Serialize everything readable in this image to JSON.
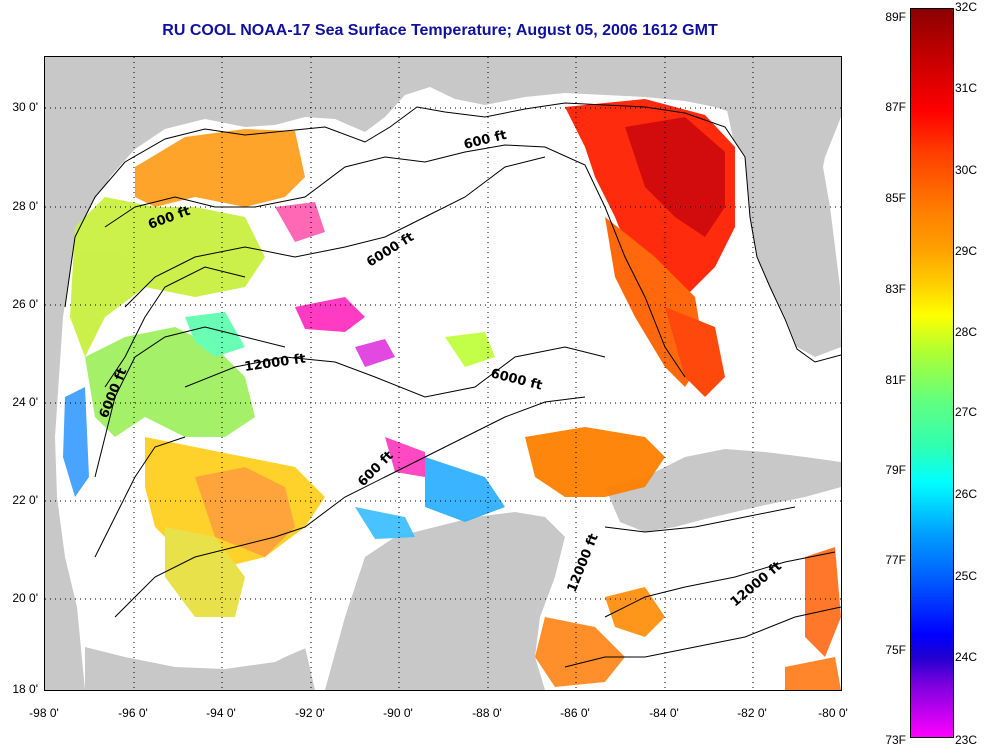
{
  "title": "RU COOL  NOAA-17  Sea Surface Temperature;  August 05, 2006 1612 GMT",
  "y_axis_labels": [
    "30 0'",
    "28 0'",
    "26 0'",
    "24 0'",
    "22 0'",
    "20 0'",
    "18 0'"
  ],
  "x_axis_labels": [
    "-98 0'",
    "-96 0'",
    "-94 0'",
    "-92 0'",
    "-90 0'",
    "-88 0'",
    "-86 0'",
    "-84 0'",
    "-82 0'",
    "-80 0'"
  ],
  "contour_labels": [
    "600 ft",
    "600 ft",
    "6000 ft",
    "12000 ft",
    "6000 ft",
    "6000 ft",
    "600 ft",
    "12000 ft",
    "12000 ft"
  ],
  "colorbar": {
    "fahrenheit": [
      "89F",
      "87F",
      "85F",
      "83F",
      "81F",
      "79F",
      "77F",
      "75F",
      "73F"
    ],
    "celsius": [
      "32C",
      "31C",
      "30C",
      "29C",
      "28C",
      "27C",
      "26C",
      "25C",
      "24C",
      "23C"
    ]
  },
  "colors": {
    "land": "#c8c8c8",
    "title": "#1010a0"
  }
}
